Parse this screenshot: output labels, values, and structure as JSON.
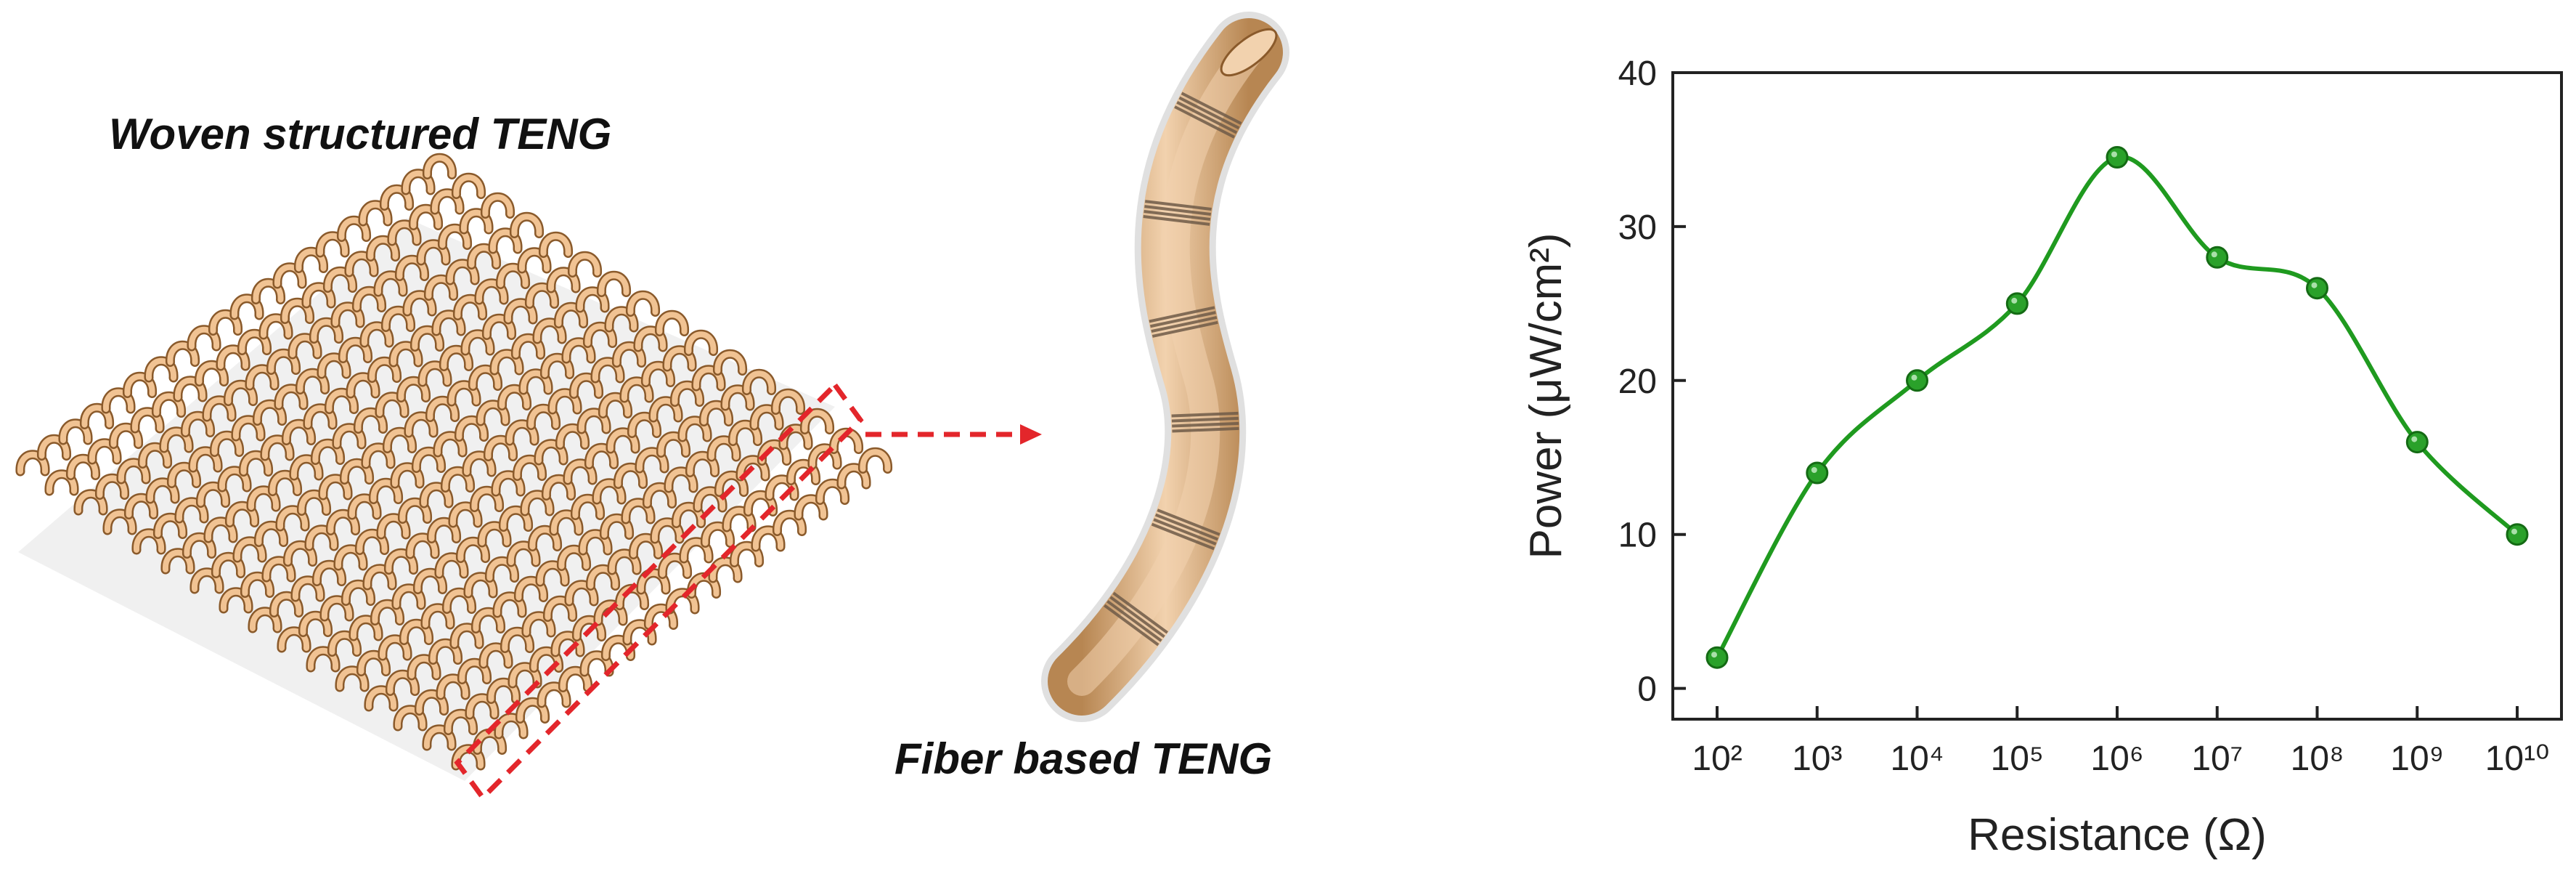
{
  "panels": {
    "woven": {
      "title": "Woven structured TENG"
    },
    "fiber": {
      "title": "Fiber based TENG"
    }
  },
  "colors": {
    "fiber_fill": "#f1c393",
    "fiber_edge": "#8a5a2b",
    "tube_light": "#f2d2ae",
    "tube_dark": "#b78652",
    "band": "#6f5a48",
    "selection": "#e3262b",
    "series": "#1f9a1f",
    "marker": "#2aa12a"
  },
  "chart_data": {
    "type": "line",
    "xlabel": "Resistance (Ω)",
    "ylabel": "Power (μW/cm²)",
    "x_scale": "log",
    "x_tick_labels": [
      "10²",
      "10³",
      "10⁴",
      "10⁵",
      "10⁶",
      "10⁷",
      "10⁸",
      "10⁹",
      "10¹⁰"
    ],
    "x": [
      100,
      1000,
      10000,
      100000,
      1000000,
      10000000,
      100000000,
      1000000000,
      10000000000
    ],
    "series": [
      {
        "values": [
          2,
          14,
          20,
          25,
          34.5,
          28,
          26,
          16,
          10
        ]
      }
    ],
    "ylim": [
      -2,
      40
    ],
    "y_ticks": [
      0,
      10,
      20,
      30,
      40
    ],
    "grid": false,
    "legend": "none"
  }
}
